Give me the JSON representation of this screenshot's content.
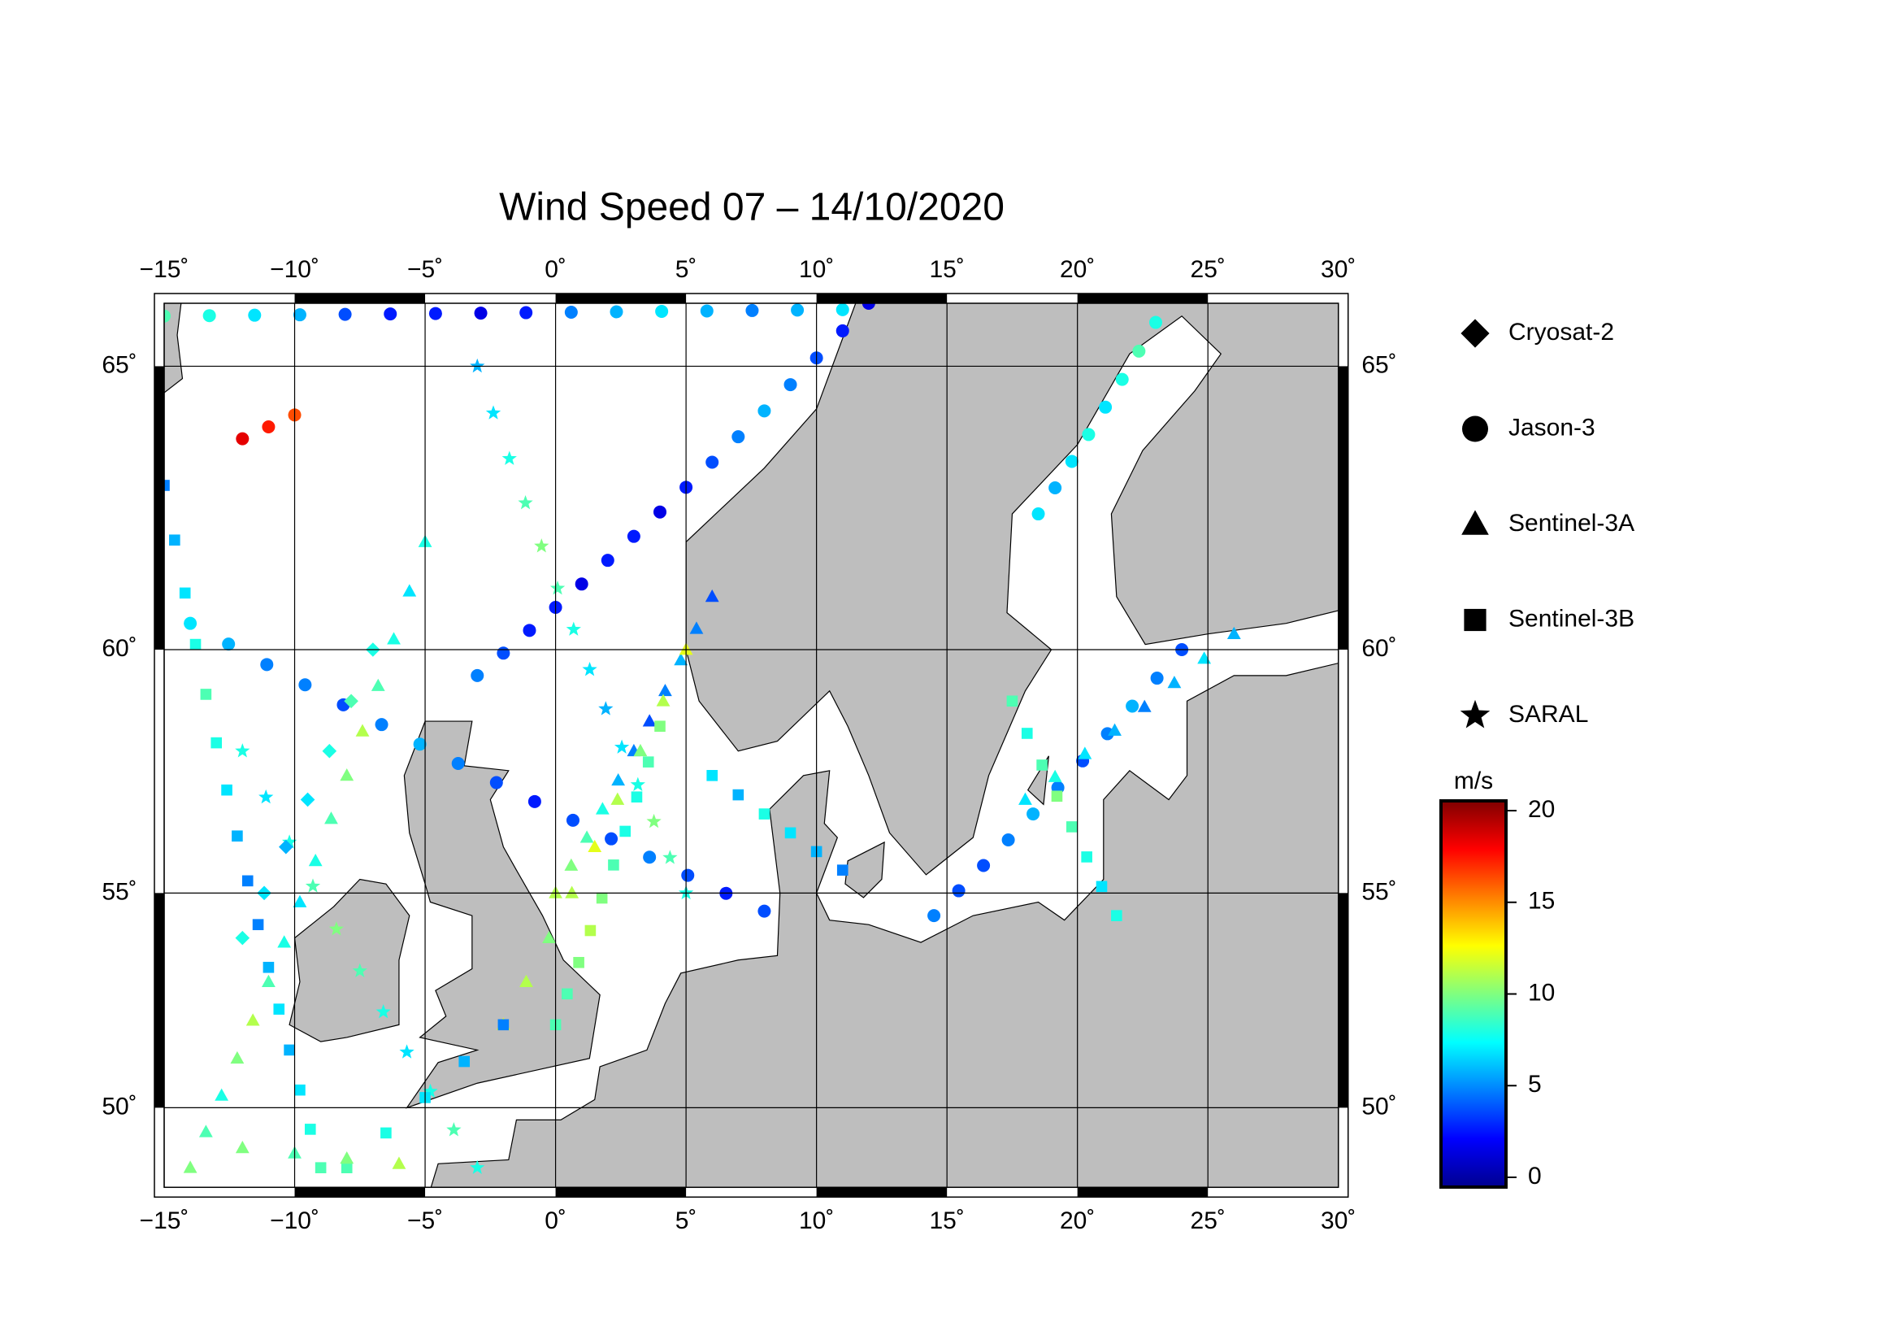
{
  "map": {
    "title": "Wind Speed 07 – 14/10/2020",
    "lon_range": [
      -15,
      30
    ],
    "lat_range": [
      48,
      66
    ],
    "lon_ticks": [
      {
        "value": -15,
        "label": "−15˚"
      },
      {
        "value": -10,
        "label": "−10˚"
      },
      {
        "value": -5,
        "label": "−5˚"
      },
      {
        "value": 0,
        "label": "0˚"
      },
      {
        "value": 5,
        "label": "5˚"
      },
      {
        "value": 10,
        "label": "10˚"
      },
      {
        "value": 15,
        "label": "15˚"
      },
      {
        "value": 20,
        "label": "20˚"
      },
      {
        "value": 25,
        "label": "25˚"
      },
      {
        "value": 30,
        "label": "30˚"
      }
    ],
    "lat_ticks": [
      {
        "value": 50,
        "label": "50˚"
      },
      {
        "value": 55,
        "label": "55˚"
      },
      {
        "value": 60,
        "label": "60˚"
      },
      {
        "value": 65,
        "label": "65˚"
      }
    ],
    "satellites": [
      "Cryosat-2",
      "Jason-3",
      "Sentinel-3A",
      "Sentinel-3B",
      "SARAL"
    ],
    "colorbar": {
      "unit": "m/s",
      "clim": [
        0,
        20
      ],
      "ticks": [
        0,
        5,
        10,
        15,
        20
      ]
    },
    "tracks": [
      {
        "satellite": 1,
        "from": [
          -14,
          60.5
        ],
        "to": [
          8,
          54.6
        ],
        "speeds": [
          7,
          6,
          5,
          5,
          4,
          5,
          6,
          5,
          4,
          3,
          4,
          4,
          5,
          4,
          3,
          4
        ]
      },
      {
        "satellite": 1,
        "from": [
          -3,
          59.5
        ],
        "to": [
          12,
          66
        ],
        "speeds": [
          5,
          4,
          3,
          3,
          2,
          3,
          3,
          2,
          3,
          4,
          5,
          6,
          5,
          4,
          3,
          2
        ]
      },
      {
        "satellite": 1,
        "from": [
          -15,
          65.8
        ],
        "to": [
          11,
          65.9
        ],
        "speeds": [
          9,
          8,
          7,
          6,
          4,
          3,
          3,
          2,
          3,
          5,
          6,
          7,
          6,
          5,
          6,
          7
        ]
      },
      {
        "satellite": 2,
        "from": [
          -14,
          48.5
        ],
        "to": [
          -5,
          62
        ],
        "speeds": [
          10,
          9,
          8,
          10,
          11,
          9,
          8,
          7,
          8,
          9,
          10,
          11,
          9,
          8,
          7,
          8
        ]
      },
      {
        "satellite": 3,
        "from": [
          -9,
          48.5
        ],
        "to": [
          -15,
          63
        ],
        "speeds": [
          9,
          8,
          7,
          6,
          7,
          6,
          5,
          5,
          6,
          7,
          8,
          9,
          8,
          7,
          6,
          5
        ]
      },
      {
        "satellite": 4,
        "from": [
          5,
          55
        ],
        "to": [
          -3,
          65
        ],
        "speeds": [
          8,
          9,
          10,
          8,
          7,
          6,
          7,
          8,
          9,
          10,
          9,
          8,
          7,
          6
        ]
      },
      {
        "satellite": 2,
        "from": [
          0,
          55
        ],
        "to": [
          6,
          61
        ],
        "speeds": [
          11,
          10,
          9,
          8,
          6,
          5,
          4,
          5,
          6,
          5,
          4
        ]
      },
      {
        "satellite": 3,
        "from": [
          0,
          52
        ],
        "to": [
          4,
          58.5
        ],
        "speeds": [
          9,
          9,
          10,
          11,
          10,
          9,
          8,
          8,
          9,
          10
        ]
      },
      {
        "satellite": 1,
        "from": [
          14.5,
          54.5
        ],
        "to": [
          24,
          60
        ],
        "speeds": [
          5,
          4,
          4,
          5,
          6,
          5,
          4,
          5,
          6,
          5,
          4
        ]
      },
      {
        "satellite": 2,
        "from": [
          18,
          57
        ],
        "to": [
          26,
          60.3
        ],
        "speeds": [
          7,
          8,
          7,
          6,
          5,
          6,
          7,
          6
        ]
      },
      {
        "satellite": 3,
        "from": [
          17.5,
          59
        ],
        "to": [
          21.5,
          54.5
        ],
        "speeds": [
          9,
          8,
          9,
          10,
          9,
          8,
          7,
          8
        ]
      },
      {
        "satellite": 1,
        "from": [
          18.5,
          62.5
        ],
        "to": [
          23,
          65.7
        ],
        "speeds": [
          7,
          6,
          7,
          8,
          7,
          8,
          9,
          8
        ]
      },
      {
        "satellite": 4,
        "from": [
          -3,
          48.5
        ],
        "to": [
          -12,
          58
        ],
        "speeds": [
          8,
          9,
          8,
          7,
          8,
          9,
          10,
          9,
          8,
          7,
          8
        ]
      },
      {
        "satellite": 0,
        "from": [
          -12,
          54
        ],
        "to": [
          -7,
          60
        ],
        "speeds": [
          8,
          7,
          6,
          7,
          8,
          9,
          8
        ]
      },
      {
        "satellite": 2,
        "from": [
          5,
          60
        ],
        "to": [
          -2,
          52
        ],
        "speeds": [
          12,
          11,
          10,
          11,
          12,
          11,
          10,
          11,
          12
        ]
      },
      {
        "satellite": 1,
        "from": [
          -12,
          63.8
        ],
        "to": [
          -10,
          64.2
        ],
        "speeds": [
          18,
          17,
          16
        ]
      },
      {
        "satellite": 3,
        "from": [
          -8,
          48.5
        ],
        "to": [
          -2,
          52
        ],
        "speeds": [
          9,
          8,
          7,
          6,
          5
        ]
      },
      {
        "satellite": 2,
        "from": [
          -12,
          49
        ],
        "to": [
          -6,
          48.6
        ],
        "speeds": [
          10,
          9,
          10,
          11
        ]
      },
      {
        "satellite": 3,
        "from": [
          6,
          57.5
        ],
        "to": [
          11,
          55.5
        ],
        "speeds": [
          7,
          6,
          8,
          7,
          6,
          5
        ]
      }
    ]
  }
}
